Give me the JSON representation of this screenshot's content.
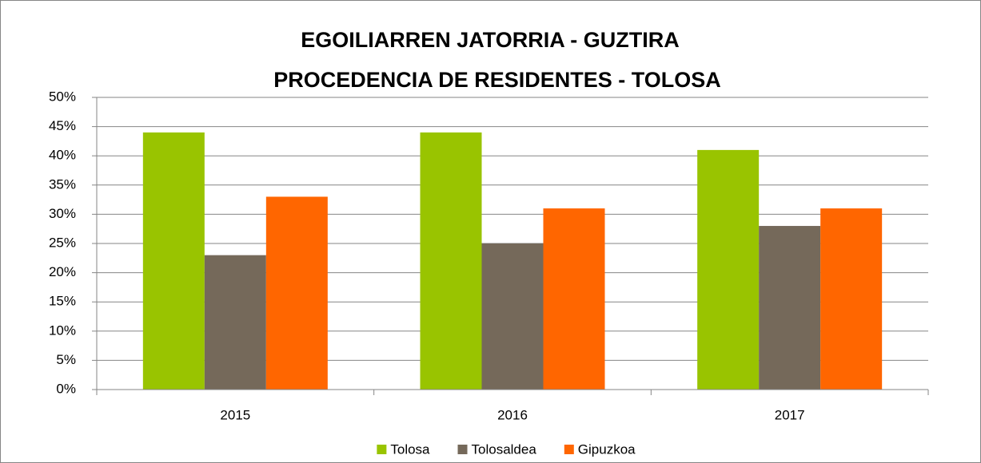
{
  "chart_data": {
    "type": "bar",
    "title": [
      "EGOILIARREN JATORRIA - GUZTIRA",
      "PROCEDENCIA DE RESIDENTES - TOLOSA"
    ],
    "categories": [
      "2015",
      "2016",
      "2017"
    ],
    "series": [
      {
        "name": "Tolosa",
        "color": "#99c400",
        "values": [
          44,
          44,
          41
        ]
      },
      {
        "name": "Tolosaldea",
        "color": "#75695a",
        "values": [
          23,
          25,
          28
        ]
      },
      {
        "name": "Gipuzkoa",
        "color": "#ff6600",
        "values": [
          33,
          31,
          31
        ]
      }
    ],
    "ylim": [
      0,
      50
    ],
    "yticks": [
      {
        "value": 0,
        "label": "0%"
      },
      {
        "value": 5,
        "label": "5%"
      },
      {
        "value": 10,
        "label": "10%"
      },
      {
        "value": 15,
        "label": "15%"
      },
      {
        "value": 20,
        "label": "20%"
      },
      {
        "value": 25,
        "label": "25%"
      },
      {
        "value": 30,
        "label": "30%"
      },
      {
        "value": 35,
        "label": "35%"
      },
      {
        "value": 40,
        "label": "40%"
      },
      {
        "value": 45,
        "label": "45%"
      },
      {
        "value": 50,
        "label": "50%"
      }
    ],
    "grid": true,
    "legend": "bottom"
  }
}
